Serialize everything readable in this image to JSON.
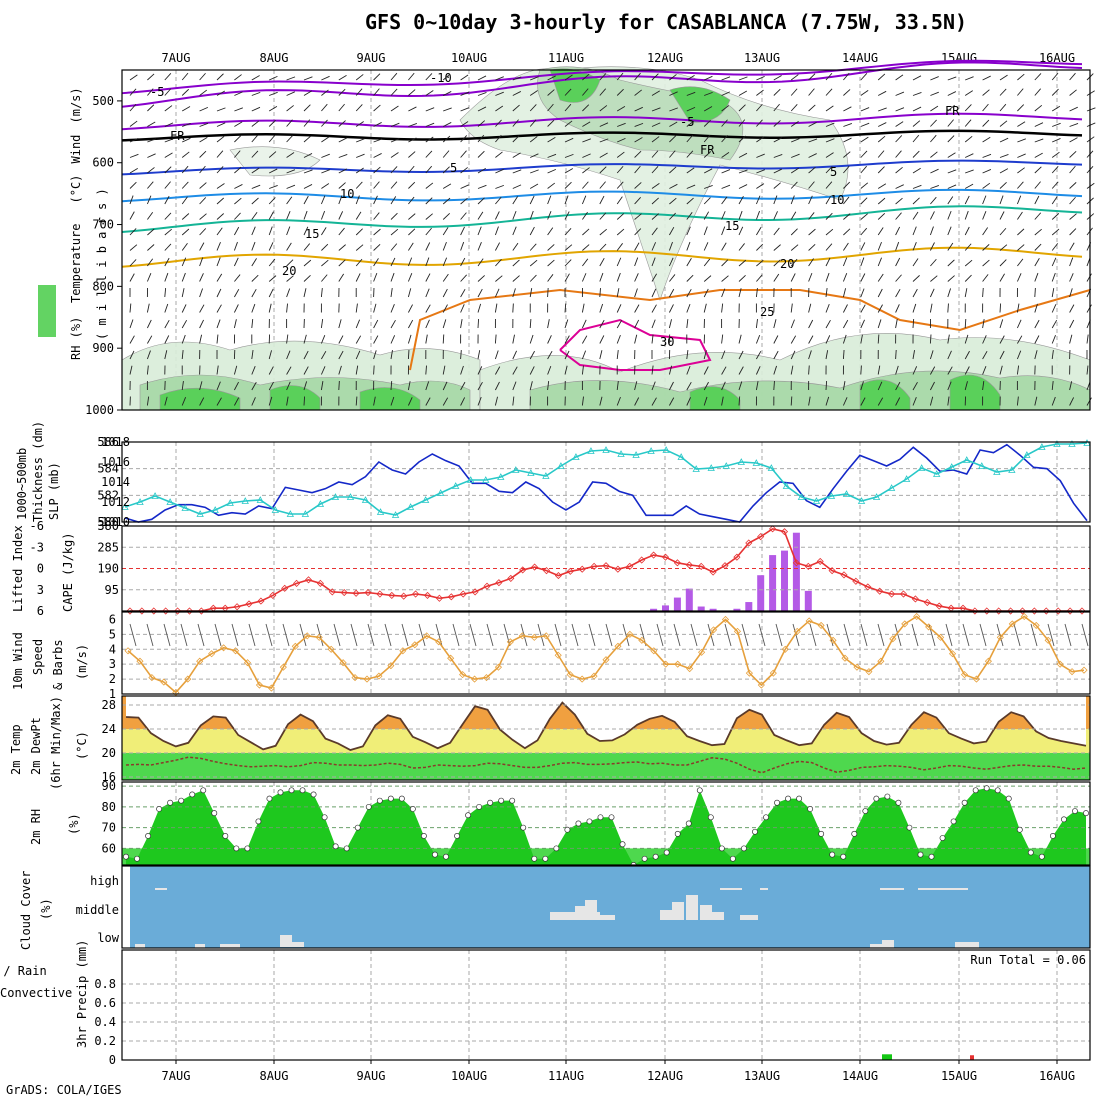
{
  "title": "GFS 0~10day 3-hourly for CASABLANCA (7.75W, 33.5N)",
  "credit": "GrADS: COLA/IGES",
  "colors": {
    "frame": "#000000",
    "grid": "#aaaaaa",
    "purple": "#8800cc",
    "black": "#000000",
    "blue": "#1e3ccd",
    "ltblue": "#1e8ce6",
    "teal": "#14b496",
    "gold": "#e1a500",
    "orange": "#e67814",
    "magenta": "#dc0096",
    "green": "#14c814",
    "cyan": "#28c8c8",
    "navy": "#1428c8",
    "red": "#e63232",
    "violet": "#b45ae6",
    "tan": "#e6a03c",
    "cloudbg": "#6aacd8",
    "cloudbar": "#e6e6e6"
  },
  "dates": [
    "7AUG",
    "8AUG",
    "9AUG",
    "10AUG",
    "11AUG",
    "12AUG",
    "13AUG",
    "14AUG",
    "15AUG",
    "16AUG"
  ],
  "panels": {
    "upper": {
      "ylabel_parts": [
        "RH (%)",
        "Temperature",
        "(°C)",
        "Wind",
        "(m/s)"
      ],
      "yunit": "( m i l l i b a r s )",
      "ticks": [
        "500",
        "600",
        "700",
        "800",
        "900",
        "1000"
      ]
    },
    "thick": {
      "ylabel_left": "1000~500mb",
      "ylabel_left2": "Thickness (dm)",
      "ylabel_right": "SLP (mb)",
      "left_ticks": [
        "586",
        "584",
        "582",
        "580"
      ],
      "right_ticks": [
        "1018",
        "1016",
        "1014",
        "1012",
        "1010"
      ]
    },
    "cape": {
      "ylabel_left": "Lifted Index",
      "ylabel_right": "CAPE (J/kg)",
      "left_ticks": [
        "-6",
        "-3",
        "0",
        "3",
        "6"
      ],
      "right_ticks": [
        "380",
        "285",
        "190",
        "95"
      ]
    },
    "wind": {
      "ylabel1": "10m Wind",
      "ylabel2": "Speed",
      "ylabel3": "& Barbs",
      "yunit": "(m/s)",
      "ticks": [
        "6",
        "5",
        "4",
        "3",
        "2",
        "1"
      ]
    },
    "temp": {
      "ylabel1": "2m Temp",
      "ylabel2": "2m DewPt",
      "ylabel3": "(6hr Min/Max)",
      "yunit": "(°C)",
      "ticks": [
        "28",
        "24",
        "20",
        "16"
      ]
    },
    "rh": {
      "ylabel": "2m RH",
      "yunit": "(%)",
      "ticks": [
        "90",
        "80",
        "70",
        "60"
      ]
    },
    "cloud": {
      "ylabel": "Cloud Cover",
      "yunit": "(%)",
      "levels": [
        "high",
        "middle",
        "low"
      ]
    },
    "precip": {
      "ylabel1": "Total / Rain",
      "ylabel2": "Convective",
      "yunit": "3hr Precip (mm)",
      "ticks": [
        "0.8",
        "0.6",
        "0.4",
        "0.2",
        "0"
      ],
      "run_total": "Run Total = 0.06"
    }
  },
  "chart_data": [
    {
      "type": "line",
      "panel": "thickness_slp",
      "x_start": "2023-08-06 12Z",
      "step_hours": 6,
      "series": [
        {
          "values": [
            580.3,
            580.0,
            580.2,
            580.9,
            581.3,
            581.3,
            581.1,
            580.5,
            580.7,
            580.6,
            581.2,
            581.0,
            582.6,
            582.4,
            582.2,
            582.5,
            583.0,
            582.8,
            583.4,
            584.5,
            583.9,
            583.6,
            584.5,
            585.1,
            584.6,
            584.2,
            582.9,
            582.9,
            582.3,
            582.2,
            583.0,
            582.5,
            581.5,
            580.9,
            581.5,
            583.0,
            582.9,
            582.3,
            582.0,
            580.5,
            580.5,
            580.5,
            581.2,
            580.6,
            580.4,
            580.2,
            580.0,
            581.2,
            582.2,
            583.0,
            582.9,
            581.6,
            581.1,
            582.5,
            583.8,
            585.0,
            584.6,
            584.2,
            584.7,
            585.6,
            584.8,
            583.8,
            583.9,
            583.6,
            585.4,
            585.2,
            585.8,
            585.0,
            584.1,
            584.0,
            583.1,
            581.4,
            580.1
          ]
        },
        {
          "values": [
            1011.5,
            1012.0,
            1012.6,
            1012.0,
            1011.4,
            1010.8,
            1011.2,
            1011.9,
            1012.1,
            1012.2,
            1011.2,
            1010.8,
            1010.8,
            1011.8,
            1012.5,
            1012.5,
            1012.2,
            1011.0,
            1010.7,
            1011.5,
            1012.2,
            1012.9,
            1013.6,
            1014.2,
            1014.2,
            1014.5,
            1015.2,
            1014.9,
            1014.6,
            1015.6,
            1016.5,
            1017.1,
            1017.2,
            1016.8,
            1016.7,
            1017.1,
            1017.2,
            1016.5,
            1015.3,
            1015.4,
            1015.6,
            1016.0,
            1015.9,
            1015.4,
            1013.6,
            1012.5,
            1012.1,
            1012.6,
            1012.8,
            1012.1,
            1012.5,
            1013.4,
            1014.3,
            1015.4,
            1014.8,
            1015.5,
            1016.2,
            1015.6,
            1015.0,
            1015.2,
            1016.7,
            1017.5,
            1017.8,
            1017.8,
            1017.9
          ]
        }
      ],
      "y_left": [
        580,
        586
      ],
      "y_right": [
        1010,
        1018
      ]
    },
    {
      "type": "bar+line",
      "panel": "cape_li",
      "x_start": "2023-08-06 12Z",
      "step_hours": 3,
      "series": [
        {
          "values": [
            6,
            6,
            6,
            6,
            6,
            6,
            6,
            5.6,
            5.6,
            5.4,
            5.0,
            4.6,
            3.8,
            2.8,
            2.1,
            1.6,
            2.1,
            3.3,
            3.4,
            3.5,
            3.4,
            3.6,
            3.8,
            3.9,
            3.6,
            3.8,
            4.2,
            4.0,
            3.6,
            3.3,
            2.5,
            2.0,
            1.4,
            0.2,
            -0.2,
            0.3,
            1.0,
            0.4,
            0.1,
            -0.3,
            -0.4,
            0.1,
            -0.3,
            -1.2,
            -1.9,
            -1.6,
            -0.8,
            -0.5,
            -0.3,
            0.5,
            -0.4,
            -1.6,
            -3.6,
            -4.5,
            -5.6,
            -5.2,
            -0.8,
            -0.3,
            -1.0,
            0.3,
            0.9,
            1.8,
            2.6,
            3.2,
            3.6,
            3.6,
            4.3,
            4.8,
            5.3,
            5.6,
            5.6,
            6,
            6,
            6,
            6,
            6,
            6,
            6,
            6,
            6,
            6
          ]
        },
        {
          "values": [
            0,
            0,
            0,
            0,
            0,
            0,
            0,
            0,
            0,
            0,
            0,
            0,
            0,
            0,
            0,
            0,
            0,
            0,
            0,
            0,
            0,
            0,
            0,
            0,
            0,
            0,
            0,
            0,
            0,
            0,
            0,
            0,
            0,
            0,
            0,
            0,
            0,
            0,
            0,
            0,
            0,
            0,
            0,
            0,
            10,
            25,
            60,
            100,
            20,
            10,
            0,
            10,
            40,
            160,
            250,
            270,
            350,
            90,
            0,
            0,
            0,
            0,
            0,
            0,
            0,
            0,
            0,
            0,
            0,
            0,
            0,
            0,
            0,
            0,
            0,
            0,
            0,
            0,
            0,
            0,
            0
          ]
        }
      ],
      "y_left": [
        -6,
        6
      ],
      "y_right": [
        0,
        380
      ]
    },
    {
      "type": "line",
      "panel": "wind10m",
      "x_start": "2023-08-06 12Z",
      "step_hours": 3,
      "values": [
        3.9,
        3.2,
        2.1,
        1.8,
        1.1,
        2.0,
        3.2,
        3.7,
        4.1,
        3.9,
        3.1,
        1.6,
        1.4,
        2.8,
        4.2,
        4.9,
        4.8,
        4.0,
        3.1,
        2.1,
        2.0,
        2.2,
        2.9,
        3.9,
        4.3,
        4.9,
        4.5,
        3.4,
        2.3,
        2.0,
        2.1,
        2.8,
        4.5,
        4.9,
        4.8,
        4.9,
        3.6,
        2.3,
        2.0,
        2.2,
        3.3,
        4.2,
        5.0,
        4.6,
        3.9,
        3.0,
        3.0,
        2.7,
        3.8,
        5.3,
        6.0,
        5.2,
        2.4,
        1.6,
        2.4,
        4.0,
        5.2,
        5.9,
        5.6,
        4.6,
        3.4,
        2.8,
        2.5,
        3.2,
        4.7,
        5.7,
        6.2,
        5.5,
        4.8,
        3.7,
        2.3,
        2.0,
        3.2,
        4.8,
        5.7,
        6.2,
        5.6,
        4.6,
        3.0,
        2.5,
        2.6
      ],
      "y_range": [
        1,
        6.5
      ]
    },
    {
      "type": "area",
      "panel": "temp2m",
      "x_start": "2023-08-06 12Z",
      "step_hours": 3,
      "series": [
        {
          "values": [
            26.0,
            25.9,
            23.3,
            22.0,
            21.1,
            21.7,
            24.6,
            26.1,
            25.9,
            23.0,
            21.8,
            20.6,
            21.2,
            24.8,
            26.4,
            25.3,
            22.4,
            21.6,
            20.5,
            21.1,
            24.6,
            26.3,
            25.7,
            22.7,
            21.8,
            20.8,
            21.7,
            24.8,
            27.8,
            27.2,
            23.9,
            22.2,
            20.8,
            22.1,
            25.7,
            28.4,
            26.4,
            23.2,
            22.0,
            22.1,
            23.1,
            24.7,
            25.7,
            26.2,
            25.2,
            22.8,
            22.0,
            21.3,
            21.5,
            25.8,
            27.2,
            26.4,
            23.0,
            22.1,
            21.3,
            21.6,
            24.7,
            26.7,
            26.0,
            23.3,
            22.0,
            21.4,
            21.7,
            24.7,
            26.8,
            25.9,
            23.3,
            22.4,
            21.6,
            21.9,
            25.2,
            26.8,
            26.1,
            23.6,
            22.5,
            22.0,
            21.6,
            21.2
          ]
        },
        {
          "values": [
            18.0,
            18.1,
            18.0,
            18.4,
            18.8,
            19.3,
            19.1,
            18.6,
            18.2,
            17.9,
            17.7,
            17.8,
            17.9,
            17.7,
            17.9,
            18.4,
            18.3,
            18.0,
            18.0,
            17.9,
            18.0,
            18.3,
            18.1,
            17.5,
            17.6,
            18.0,
            17.9,
            17.8,
            17.9,
            18.3,
            18.2,
            17.9,
            17.6,
            17.6,
            17.9,
            18.3,
            18.4,
            18.1,
            18.1,
            18.2,
            18.4,
            18.5,
            18.2,
            18.3,
            18.0,
            18.0,
            18.6,
            19.2,
            19.0,
            18.3,
            17.3,
            16.7,
            17.5,
            18.2,
            18.6,
            18.4,
            17.5,
            16.8,
            17.1,
            17.6,
            17.7,
            17.9,
            17.8,
            17.6,
            17.2,
            17.5,
            17.9,
            17.8,
            17.5,
            17.3,
            17.6,
            17.9,
            18.0,
            17.8,
            17.8,
            17.6,
            17.3,
            17.5
          ]
        }
      ],
      "y_range": [
        15.5,
        29.5
      ]
    },
    {
      "type": "area",
      "panel": "rh2m",
      "x_start": "2023-08-06 12Z",
      "step_hours": 3,
      "values": [
        56,
        55,
        66,
        79,
        82,
        83,
        86,
        88,
        77,
        66,
        60,
        60,
        73,
        84,
        87,
        88,
        88,
        86,
        75,
        61,
        60,
        70,
        80,
        83,
        84,
        84,
        79,
        66,
        57,
        56,
        66,
        76,
        80,
        82,
        83,
        83,
        70,
        55,
        55,
        60,
        69,
        72,
        73,
        75,
        75,
        62,
        52,
        55,
        56,
        58,
        67,
        72,
        88,
        75,
        60,
        55,
        60,
        68,
        75,
        82,
        84,
        84,
        79,
        67,
        57,
        56,
        67,
        78,
        84,
        85,
        82,
        70,
        57,
        56,
        65,
        73,
        82,
        88,
        89,
        88,
        84,
        69,
        58,
        56,
        66,
        74,
        78,
        77
      ],
      "y_range": [
        52,
        92
      ]
    },
    {
      "type": "bar",
      "panel": "cloud",
      "levels": [
        "high",
        "middle",
        "low"
      ],
      "x_start": "2023-08-06 12Z",
      "step_hours": 3,
      "note_values": "fraction per level"
    },
    {
      "type": "bar",
      "panel": "precip",
      "run_total_mm": 0.06,
      "bars": [
        {
          "time": "14AUG 06Z",
          "total": 0.06,
          "kind": "total"
        },
        {
          "time": "15AUG 03Z",
          "total": 0.05,
          "kind": "convective"
        }
      ],
      "y_range": [
        0,
        1
      ]
    }
  ]
}
